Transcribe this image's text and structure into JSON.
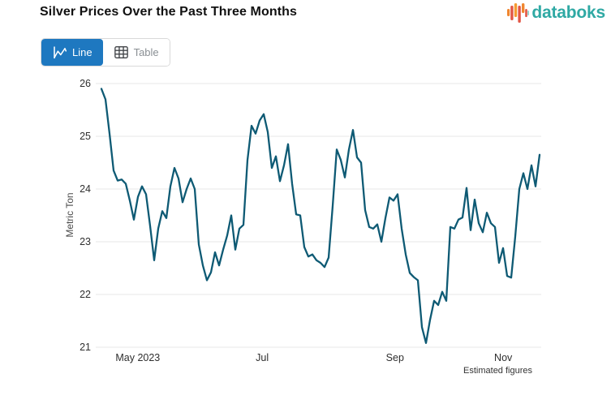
{
  "header": {
    "title": "Silver Prices Over the Past Three Months",
    "logo_text": "databoks"
  },
  "toolbar": {
    "line_label": "Line",
    "table_label": "Table"
  },
  "colors": {
    "line": "#0e5a74",
    "accent_blue": "#1e78c0",
    "logo_teal": "#2fa9a4",
    "grid": "#e7e7e7",
    "logo_bar_orange": "#f0862f",
    "logo_bar_red": "#e25544",
    "logo_bar_amber": "#f59b31",
    "logo_bar_teal": "#8fd2cc"
  },
  "chart_data": {
    "type": "line",
    "title": "Silver Prices Over the Past Three Months",
    "xlabel": "",
    "ylabel": "Metric Ton",
    "ylim": [
      21,
      26
    ],
    "yticks": [
      21,
      22,
      23,
      24,
      25,
      26
    ],
    "grid": "horizontal",
    "legend": "none",
    "note": "Estimated figures",
    "xticks": [
      {
        "label": "May 2023",
        "pos": 0.083
      },
      {
        "label": "Jul",
        "pos": 0.367
      },
      {
        "label": "Sep",
        "pos": 0.67
      },
      {
        "label": "Nov",
        "pos": 0.917
      }
    ],
    "series": [
      {
        "name": "Silver price per metric ton",
        "color": "#0e5a74",
        "values": [
          25.9,
          25.7,
          25.05,
          24.35,
          24.16,
          24.18,
          24.1,
          23.78,
          23.42,
          23.85,
          24.05,
          23.9,
          23.3,
          22.65,
          23.25,
          23.58,
          23.45,
          24.05,
          24.4,
          24.2,
          23.75,
          24.0,
          24.2,
          24.0,
          22.95,
          22.55,
          22.27,
          22.42,
          22.8,
          22.55,
          22.85,
          23.12,
          23.5,
          22.85,
          23.25,
          23.32,
          24.55,
          25.2,
          25.05,
          25.3,
          25.42,
          25.08,
          24.4,
          24.62,
          24.15,
          24.45,
          24.85,
          24.1,
          23.52,
          23.5,
          22.9,
          22.72,
          22.76,
          22.65,
          22.6,
          22.52,
          22.7,
          23.68,
          24.75,
          24.55,
          24.22,
          24.75,
          25.12,
          24.6,
          24.5,
          23.6,
          23.28,
          23.25,
          23.33,
          23.0,
          23.45,
          23.84,
          23.78,
          23.9,
          23.25,
          22.76,
          22.41,
          22.33,
          22.27,
          21.38,
          21.08,
          21.52,
          21.88,
          21.8,
          22.05,
          21.88,
          23.28,
          23.25,
          23.42,
          23.46,
          24.02,
          23.22,
          23.8,
          23.35,
          23.18,
          23.55,
          23.35,
          23.28,
          22.6,
          22.88,
          22.35,
          22.32,
          23.1,
          24.0,
          24.3,
          24.0,
          24.45,
          24.05,
          24.65
        ]
      }
    ]
  }
}
